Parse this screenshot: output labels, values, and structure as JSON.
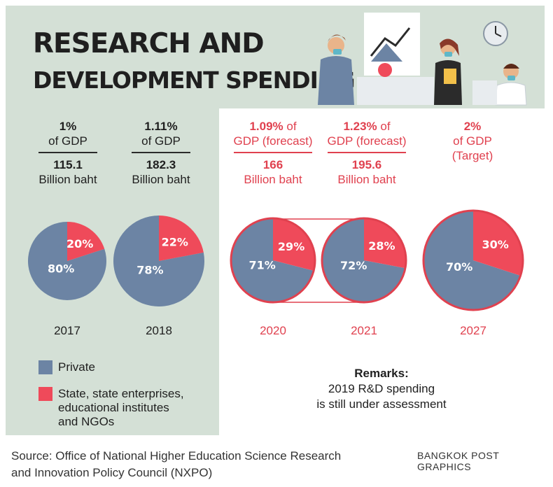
{
  "title_line1": "RESEARCH AND",
  "title_line2": "DEVELOPMENT SPENDING",
  "colors": {
    "private": "#6c84a4",
    "state": "#ef4a5a",
    "accent": "#e0414f",
    "panel": "#d4e0d6"
  },
  "columns": [
    {
      "pct": "1%",
      "pct_suffix": "",
      "gdp": "of GDP",
      "amount": "115.1",
      "unit": "Billion baht"
    },
    {
      "pct": "1.11%",
      "pct_suffix": "",
      "gdp": "of GDP",
      "amount": "182.3",
      "unit": "Billion baht"
    },
    {
      "pct": "1.09%",
      "pct_suffix": " of",
      "gdp": "GDP (forecast)",
      "amount": "166",
      "unit": "Billion baht"
    },
    {
      "pct": "1.23%",
      "pct_suffix": " of",
      "gdp": "GDP (forecast)",
      "amount": "195.6",
      "unit": "Billion baht"
    },
    {
      "pct": "2%",
      "pct_suffix": "",
      "gdp": "of GDP",
      "amount": "",
      "unit": "(Target)"
    }
  ],
  "chart_data": {
    "type": "pie",
    "title": "RESEARCH AND DEVELOPMENT SPENDING",
    "legend": [
      "Private",
      "State, state enterprises, educational institutes and NGOs"
    ],
    "pies": [
      {
        "year": "2017",
        "private": 80,
        "state": 20,
        "private_label": "80%",
        "state_label": "20%"
      },
      {
        "year": "2018",
        "private": 78,
        "state": 22,
        "private_label": "78%",
        "state_label": "22%"
      },
      {
        "year": "2020",
        "private": 71,
        "state": 29,
        "private_label": "71%",
        "state_label": "29%"
      },
      {
        "year": "2021",
        "private": 72,
        "state": 28,
        "private_label": "72%",
        "state_label": "28%"
      },
      {
        "year": "2027",
        "private": 70,
        "state": 30,
        "private_label": "70%",
        "state_label": "30%"
      }
    ]
  },
  "legend": {
    "private": "Private",
    "state_line1": "State, state enterprises,",
    "state_line2": "educational institutes",
    "state_line3": "and NGOs"
  },
  "remarks": {
    "title": "Remarks:",
    "line1": "2019 R&D spending",
    "line2": "is still under assessment"
  },
  "source_line1": "Source: Office of National Higher Education Science Research",
  "source_line2": "and Innovation Policy Council (NXPO)",
  "credit": "BANGKOK POST GRAPHICS"
}
